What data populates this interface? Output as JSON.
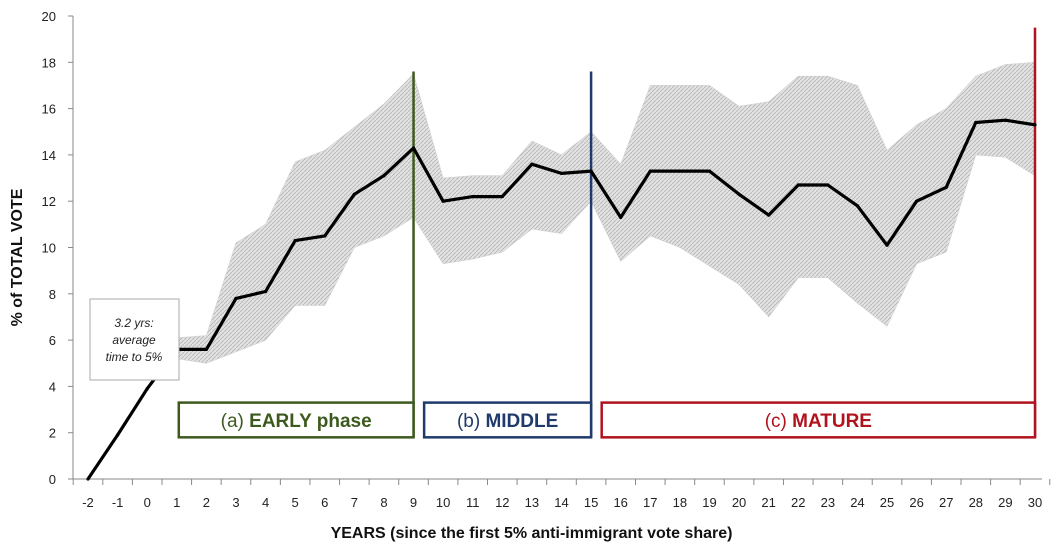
{
  "chart_data": {
    "type": "line",
    "xlabel": "YEARS (since the first 5% anti-immigrant vote share)",
    "ylabel": "% of TOTAL VOTE",
    "xlim": [
      -2,
      30
    ],
    "ylim": [
      0,
      20
    ],
    "x_ticks": [
      -2,
      -1,
      0,
      1,
      2,
      3,
      4,
      5,
      6,
      7,
      8,
      9,
      10,
      11,
      12,
      13,
      14,
      15,
      16,
      17,
      18,
      19,
      20,
      21,
      22,
      23,
      24,
      25,
      26,
      27,
      28,
      29,
      30
    ],
    "y_ticks": [
      0,
      2,
      4,
      6,
      8,
      10,
      12,
      14,
      16,
      18,
      20
    ],
    "grid": false,
    "series": [
      {
        "x": [
          -2,
          -1,
          0,
          1,
          2,
          3,
          4,
          5,
          6,
          7,
          8,
          9,
          10,
          11,
          12,
          13,
          14,
          15,
          16,
          17,
          18,
          19,
          20,
          21,
          22,
          23,
          24,
          25,
          26,
          27,
          28,
          29,
          30
        ],
        "values": [
          0,
          1.9,
          3.9,
          5.6,
          5.6,
          7.8,
          8.1,
          10.3,
          10.5,
          12.3,
          13.1,
          14.3,
          12.0,
          12.2,
          12.2,
          13.6,
          13.2,
          13.3,
          11.3,
          13.3,
          13.3,
          13.3,
          12.3,
          11.4,
          12.7,
          12.7,
          11.8,
          10.1,
          12.0,
          12.6,
          15.4,
          15.5,
          15.3
        ],
        "color": "#000000"
      }
    ],
    "band": {
      "x": [
        1,
        2,
        3,
        4,
        5,
        6,
        7,
        8,
        9,
        10,
        11,
        12,
        13,
        14,
        15,
        16,
        17,
        18,
        19,
        20,
        21,
        22,
        23,
        24,
        25,
        26,
        27,
        28,
        29,
        30
      ],
      "lower": [
        5.2,
        5.0,
        5.5,
        6.0,
        7.5,
        7.5,
        10.0,
        10.5,
        11.3,
        9.3,
        9.5,
        9.8,
        10.8,
        10.6,
        12.0,
        9.4,
        10.5,
        10.0,
        9.2,
        8.4,
        7.0,
        8.7,
        8.7,
        7.6,
        6.6,
        9.3,
        9.8,
        14.0,
        13.9,
        13.1
      ],
      "upper": [
        6.1,
        6.2,
        10.2,
        11.0,
        13.7,
        14.2,
        15.2,
        16.2,
        17.5,
        13.0,
        13.1,
        13.1,
        14.6,
        14.0,
        15.0,
        13.6,
        17.0,
        17.0,
        17.0,
        16.1,
        16.3,
        17.4,
        17.4,
        17.0,
        14.2,
        15.3,
        16.0,
        17.4,
        17.9,
        18.0
      ],
      "color": "#c4c4c4"
    },
    "phases": [
      {
        "label_a": "(a)",
        "label_b": "EARLY phase",
        "start": 1,
        "end": 9,
        "color": "#3d5a1e"
      },
      {
        "label_a": "(b)",
        "label_b": "MIDDLE",
        "start": 10,
        "end": 15,
        "color": "#1f3a6b"
      },
      {
        "label_a": "(c)",
        "label_b": "MATURE",
        "start": 16,
        "end": 30,
        "color": "#b0131e"
      }
    ],
    "annotation": {
      "lines": [
        "3.2 yrs:",
        "average",
        "time to 5%"
      ]
    }
  }
}
